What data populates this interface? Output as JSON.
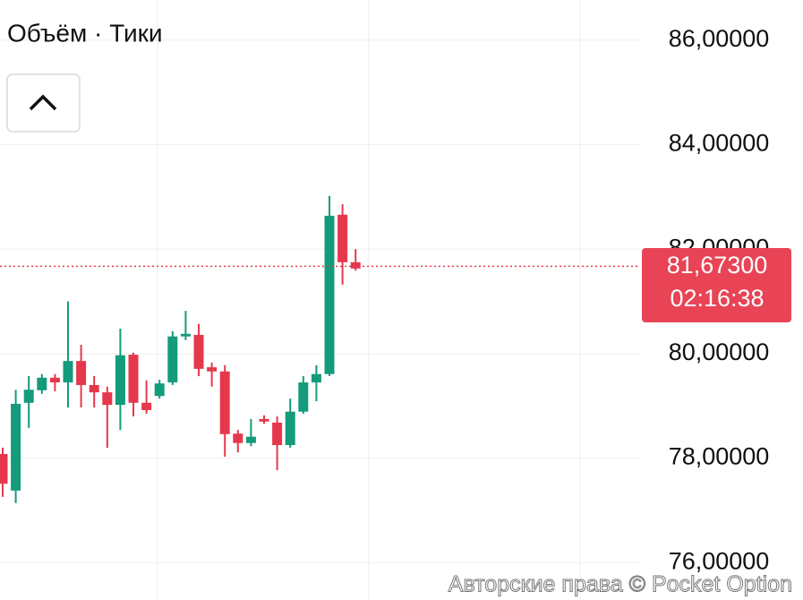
{
  "chart_data": {
    "type": "candlestick",
    "indicator_label": "Объём · Тики",
    "copyright": "Авторские права © Pocket Option",
    "up_color": "#139b7b",
    "down_color": "#e5384d",
    "grid": true,
    "ylim": [
      75.285,
      86.77
    ],
    "yticks": [
      {
        "value": 76,
        "label": "76,00000"
      },
      {
        "value": 78,
        "label": "78,00000"
      },
      {
        "value": 80,
        "label": "80,00000"
      },
      {
        "value": 82,
        "label": "82,00000"
      },
      {
        "value": 84,
        "label": "84,00000"
      },
      {
        "value": 86,
        "label": "86,00000"
      }
    ],
    "current_price": {
      "value": 81.673,
      "label": "81,67300"
    },
    "timer": "02:16:38",
    "open": [
      78.08,
      77.38,
      79.06,
      79.3,
      79.54,
      79.45,
      79.86,
      79.4,
      79.26,
      79.02,
      79.98,
      79.06,
      79.19,
      79.45,
      80.33,
      80.36,
      79.74,
      79.66,
      78.47,
      78.29,
      78.75,
      78.68,
      78.25,
      78.89,
      79.45,
      79.61,
      82.66,
      81.75
    ],
    "high": [
      78.2,
      79.31,
      79.57,
      79.61,
      79.61,
      81.0,
      80.17,
      79.57,
      79.37,
      80.48,
      80.02,
      79.49,
      79.5,
      80.43,
      80.82,
      80.57,
      79.83,
      79.78,
      78.54,
      78.75,
      78.82,
      78.8,
      79.14,
      79.57,
      79.78,
      83.02,
      82.86,
      82.0
    ],
    "low": [
      77.26,
      77.14,
      78.58,
      79.23,
      79.28,
      78.97,
      78.97,
      78.97,
      78.2,
      78.54,
      78.8,
      78.85,
      79.14,
      79.4,
      80.26,
      79.57,
      79.37,
      78.03,
      78.11,
      78.23,
      78.66,
      77.77,
      78.2,
      78.85,
      79.09,
      79.57,
      81.32,
      81.59
    ],
    "close": [
      77.51,
      79.04,
      79.31,
      79.54,
      79.45,
      79.86,
      79.4,
      79.26,
      79.02,
      79.97,
      79.06,
      78.92,
      79.43,
      80.33,
      80.38,
      79.71,
      79.66,
      78.46,
      78.29,
      78.41,
      78.7,
      78.25,
      78.89,
      79.45,
      79.61,
      82.64,
      81.75,
      81.63
    ]
  }
}
